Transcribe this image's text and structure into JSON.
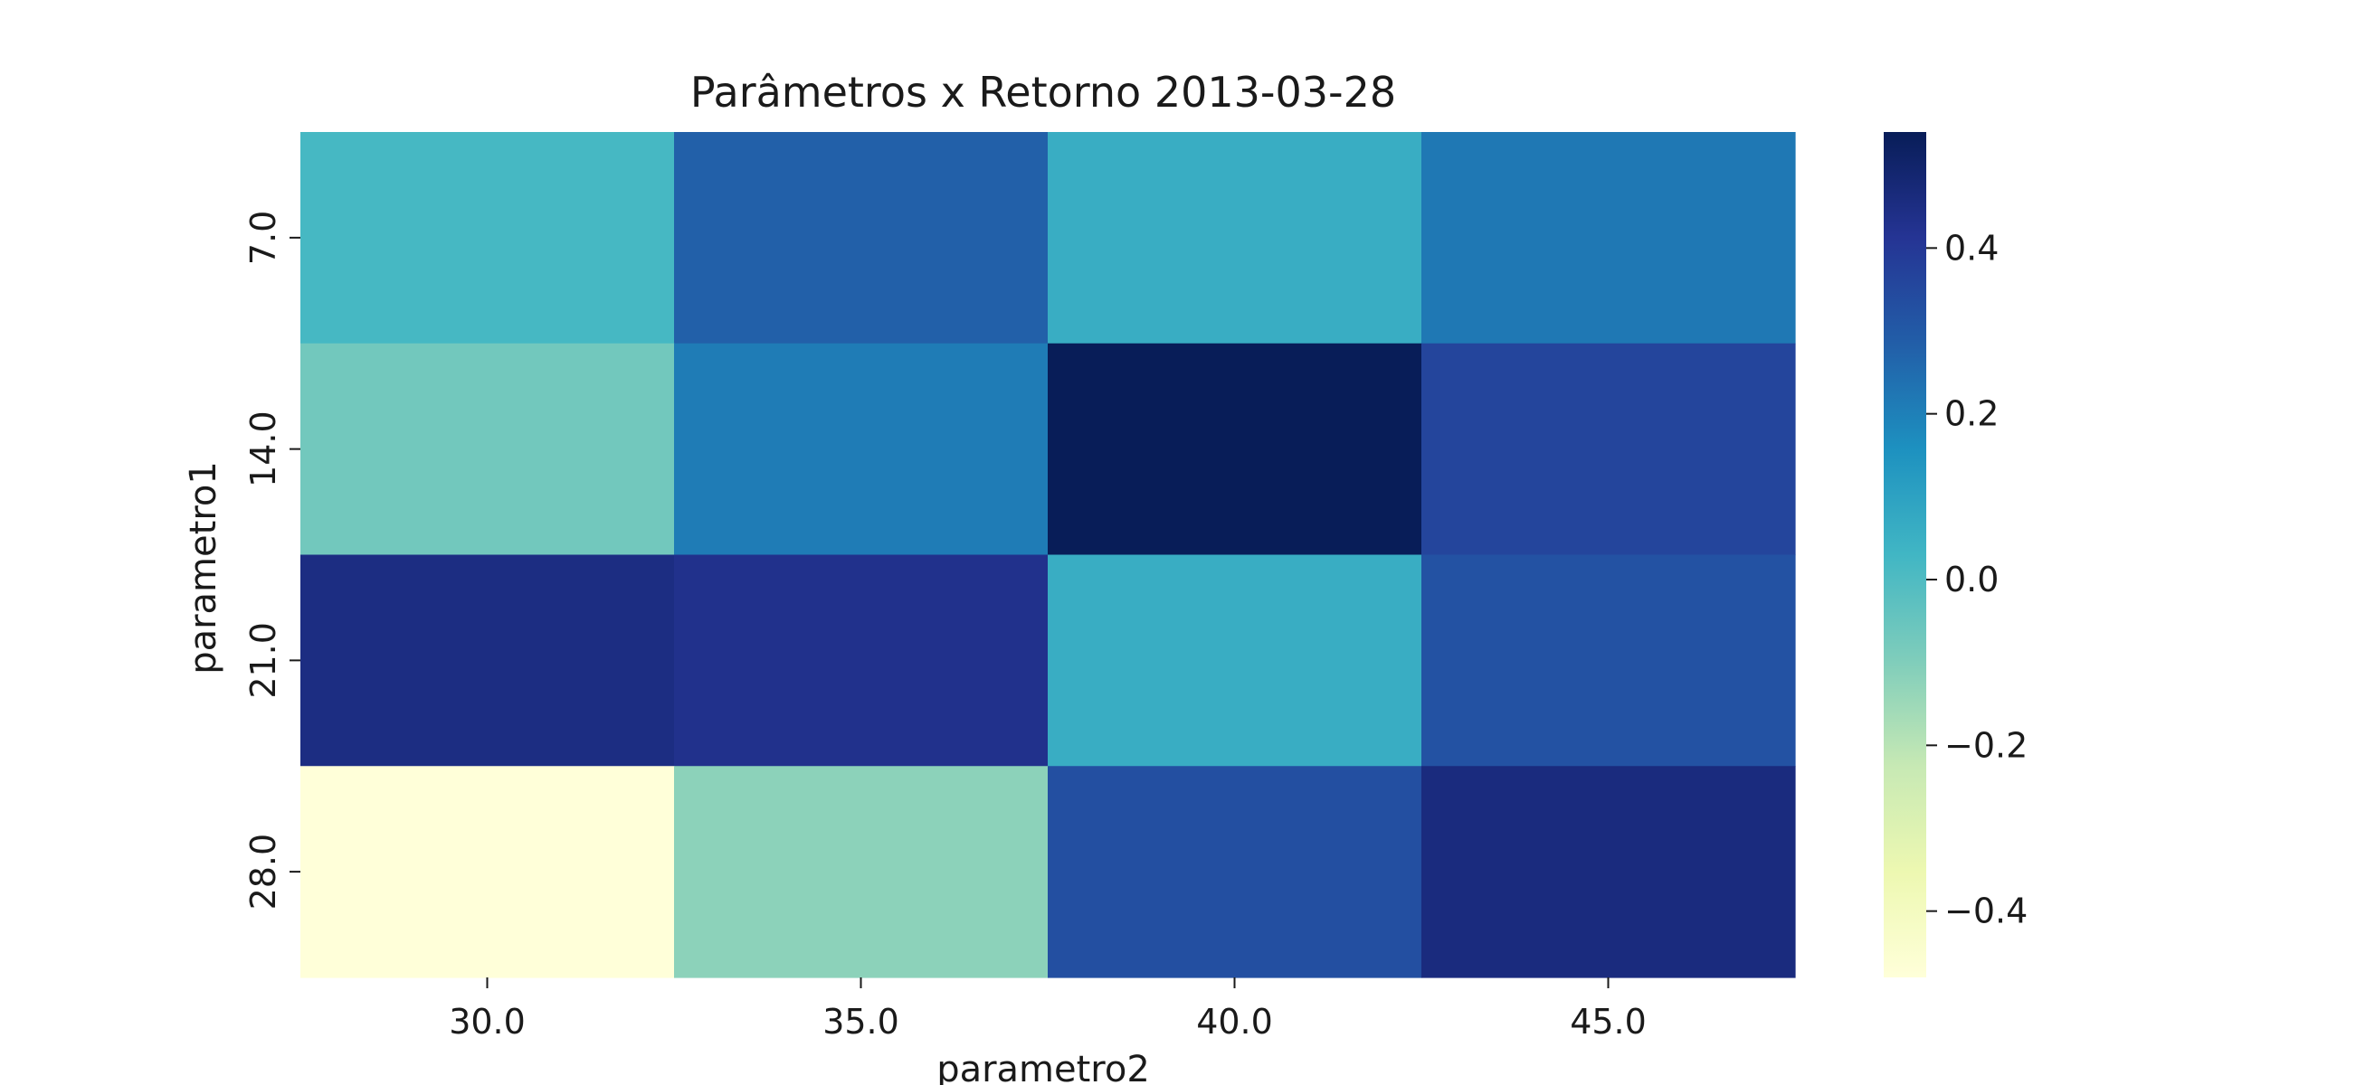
{
  "chart_data": {
    "type": "heatmap",
    "title": "Parâmetros x Retorno 2013-03-28",
    "xlabel": "parametro2",
    "ylabel": "parametro1",
    "x_categories": [
      "30.0",
      "35.0",
      "40.0",
      "45.0"
    ],
    "y_categories": [
      "7.0",
      "14.0",
      "21.0",
      "28.0"
    ],
    "values": [
      [
        0.02,
        0.28,
        0.06,
        0.22
      ],
      [
        -0.07,
        0.21,
        0.54,
        0.36
      ],
      [
        0.45,
        0.43,
        0.06,
        0.32
      ],
      [
        -0.48,
        -0.12,
        0.33,
        0.46
      ]
    ],
    "colorbar": {
      "min": -0.48,
      "max": 0.54,
      "ticks": [
        0.4,
        0.2,
        0.0,
        -0.2,
        -0.4
      ],
      "tick_labels": [
        "0.4",
        "0.2",
        "0.0",
        "−0.2",
        "−0.4"
      ],
      "colormap": "YlGnBu"
    },
    "grid": false
  }
}
